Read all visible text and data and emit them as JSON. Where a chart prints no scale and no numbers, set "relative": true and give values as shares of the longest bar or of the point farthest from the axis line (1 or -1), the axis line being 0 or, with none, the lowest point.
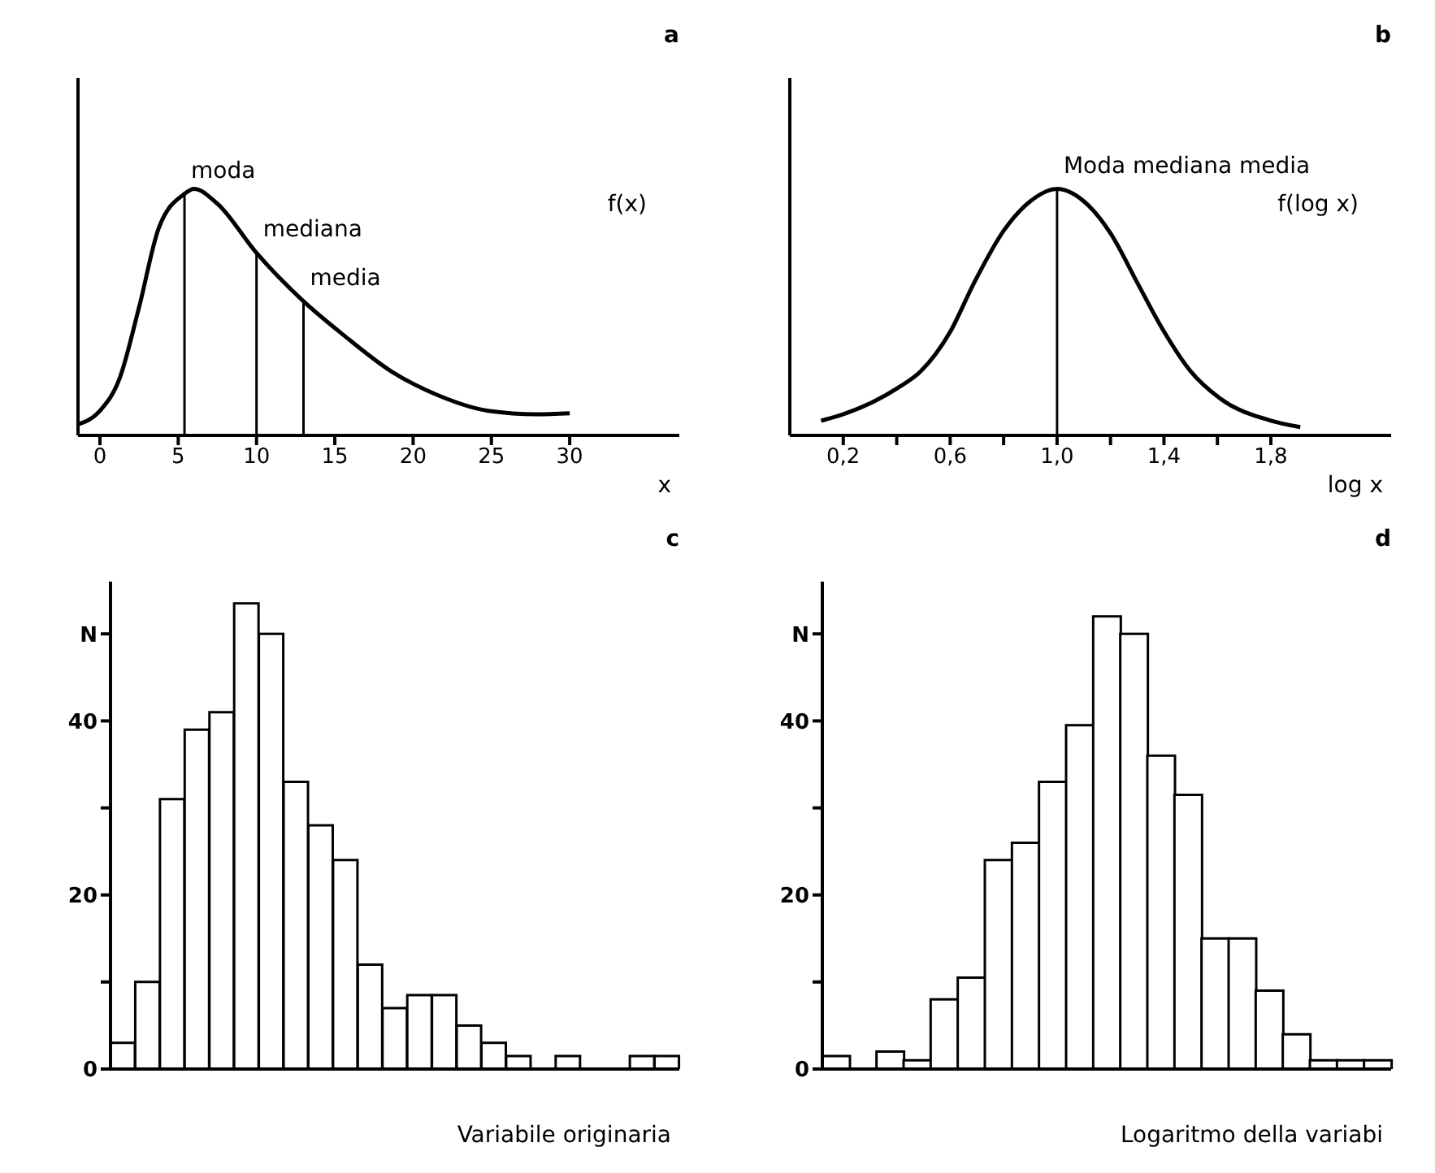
{
  "chart_data": [
    {
      "type": "line",
      "title": "a",
      "xlabel": "x",
      "relative": true,
      "series": [
        {
          "color": "#000000",
          "x": [
            -1.4,
            0,
            1.25,
            2.5,
            3.75,
            5.4,
            6,
            7.5,
            10,
            12.9,
            15.5,
            18.6,
            21.7,
            24.8,
            27.9,
            30
          ],
          "values": [
            0.045,
            0.1,
            0.23,
            0.52,
            0.84,
            0.98,
            1,
            0.94,
            0.74,
            0.55,
            0.41,
            0.26,
            0.16,
            0.1,
            0.086,
            0.09
          ]
        }
      ],
      "xlim": [
        -1.4,
        37
      ],
      "xticks": [
        0,
        5,
        10,
        15,
        20,
        25,
        30
      ],
      "ref_lines": [
        {
          "axis": "x",
          "value": 5.4,
          "label": "moda"
        },
        {
          "axis": "x",
          "value": 10,
          "label": "mediana"
        },
        {
          "axis": "x",
          "value": 13,
          "label": "media"
        }
      ],
      "annotations": [
        "f(x)"
      ]
    },
    {
      "type": "line",
      "title": "b",
      "xlabel": "log x",
      "relative": true,
      "series": [
        {
          "color": "#000000",
          "x": [
            0.117,
            0.2,
            0.4,
            0.49,
            0.6,
            0.69,
            0.8,
            0.9,
            1.0,
            1.1,
            1.2,
            1.3,
            1.39,
            1.5,
            1.61,
            1.8,
            1.91
          ],
          "values": [
            0.06,
            0.086,
            0.19,
            0.26,
            0.42,
            0.62,
            0.83,
            0.95,
            1,
            0.95,
            0.82,
            0.62,
            0.44,
            0.26,
            0.15,
            0.06,
            0.034
          ]
        }
      ],
      "xlim": [
        0,
        2.25
      ],
      "xticks": [
        {
          "value": 0.2,
          "label": "0,2"
        },
        {
          "value": 0.4,
          "label": null
        },
        {
          "value": 0.6,
          "label": "0,6"
        },
        {
          "value": 0.8,
          "label": null
        },
        {
          "value": 1.0,
          "label": "1,0"
        },
        {
          "value": 1.2,
          "label": null
        },
        {
          "value": 1.4,
          "label": "1,4"
        },
        {
          "value": 1.6,
          "label": null
        },
        {
          "value": 1.8,
          "label": "1,8"
        }
      ],
      "ref_lines": [
        {
          "axis": "x",
          "value": 1.0,
          "label": "Moda mediana media"
        }
      ],
      "annotations": [
        "f(log x)"
      ]
    },
    {
      "type": "bar",
      "title": "c",
      "xlabel": "Variabile originaria",
      "categories": [
        null,
        null,
        null,
        null,
        null,
        null,
        null,
        null,
        null,
        null,
        null,
        null,
        null,
        null,
        null,
        null,
        null,
        null,
        null,
        null,
        null,
        null,
        null
      ],
      "series": [
        {
          "color": "#ffffff",
          "values": [
            3,
            10,
            31,
            39,
            41,
            53.5,
            50,
            33,
            28,
            24,
            12,
            7,
            8.5,
            8.5,
            5,
            3,
            1.5,
            0,
            1.5,
            0,
            0,
            1.5,
            1.5
          ]
        }
      ],
      "ylim": [
        0,
        56
      ],
      "yticks": [
        0,
        {
          "value": 10,
          "label": null
        },
        20,
        {
          "value": 30,
          "label": null
        },
        40,
        {
          "value": 50,
          "label": "N"
        }
      ]
    },
    {
      "type": "bar",
      "title": "d",
      "xlabel": "Logaritmo della variabi",
      "categories": [
        null,
        null,
        null,
        null,
        null,
        null,
        null,
        null,
        null,
        null,
        null,
        null,
        null,
        null,
        null,
        null,
        null,
        null,
        null,
        null,
        null
      ],
      "series": [
        {
          "color": "#ffffff",
          "values": [
            1.5,
            0,
            2,
            1,
            8,
            10.5,
            24,
            26,
            33,
            39.5,
            52,
            50,
            36,
            31.5,
            15,
            15,
            9,
            4,
            1,
            1,
            1
          ]
        }
      ],
      "ylim": [
        0,
        56
      ],
      "yticks": [
        0,
        {
          "value": 10,
          "label": null
        },
        20,
        {
          "value": 30,
          "label": null
        },
        40,
        {
          "value": 50,
          "label": "N"
        }
      ]
    }
  ]
}
